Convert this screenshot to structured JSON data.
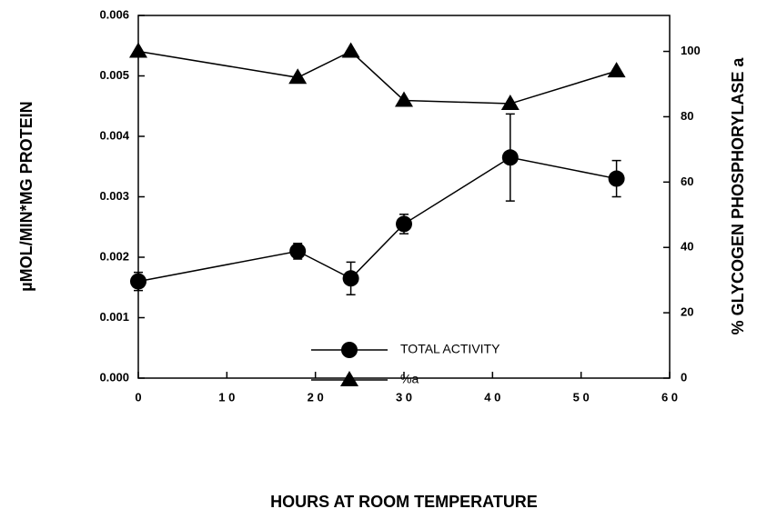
{
  "chart_data": {
    "type": "line",
    "xlabel": "HOURS AT ROOM TEMPERATURE",
    "ylabel": "µMOL/MIN*MG  PROTEIN",
    "y2label": "% GLYCOGEN PHOSPHORYLASE a",
    "x": [
      0,
      18,
      24,
      30,
      42,
      54
    ],
    "xlim": [
      0,
      60
    ],
    "xticks": [
      0,
      {
        "value": 10,
        "label": "1 0"
      },
      {
        "value": 20,
        "label": "2 0"
      },
      {
        "value": 30,
        "label": "3 0"
      },
      {
        "value": 40,
        "label": "4 0"
      },
      {
        "value": 50,
        "label": "5 0"
      },
      {
        "value": 60,
        "label": "6 0"
      }
    ],
    "ylim": [
      0,
      0.006
    ],
    "yticks": [
      {
        "value": 0,
        "label": "0.000"
      },
      {
        "value": 0.001,
        "label": "0.001"
      },
      {
        "value": 0.002,
        "label": "0.002"
      },
      {
        "value": 0.003,
        "label": "0.003"
      },
      {
        "value": 0.004,
        "label": "0.004"
      },
      {
        "value": 0.005,
        "label": "0.005"
      },
      {
        "value": 0.006,
        "label": "0.006"
      }
    ],
    "y2lim": [
      0,
      111
    ],
    "y2ticks": [
      0,
      20,
      40,
      60,
      80,
      100
    ],
    "series": [
      {
        "name": "TOTAL ACTIVITY",
        "color": "#000000",
        "marker": "circle",
        "values": [
          0.0016,
          0.0021,
          0.00165,
          0.00255,
          0.00365,
          0.0033
        ],
        "errors": [
          0.00015,
          0.00013,
          0.00027,
          0.00016,
          0.00072,
          0.0003
        ]
      },
      {
        "name": "%a",
        "color": "#000000",
        "marker": "triangle",
        "axis": "y2",
        "values": [
          100,
          92,
          100,
          85,
          84,
          94
        ]
      }
    ]
  }
}
